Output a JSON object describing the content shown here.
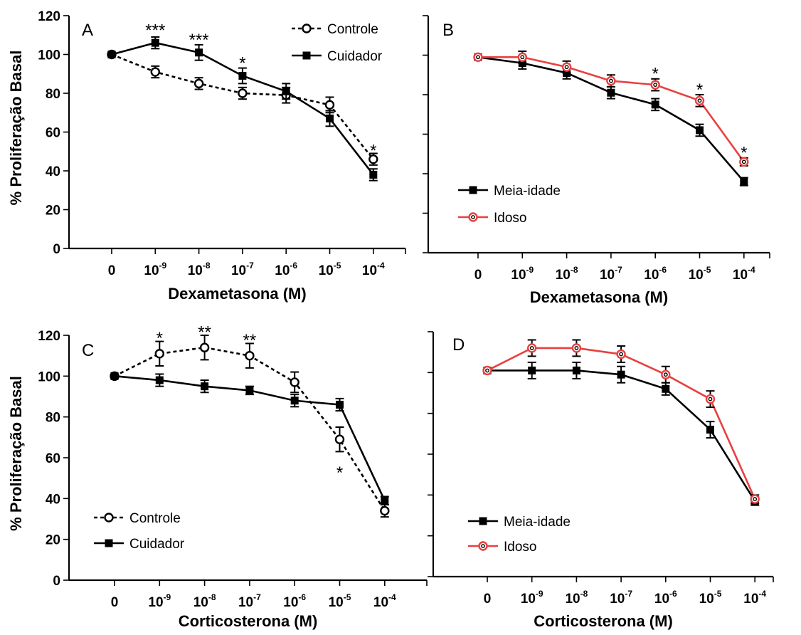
{
  "chart_data": [
    {
      "type": "line",
      "panel": "A",
      "xlabel": "Dexametasona (M)",
      "ylabel": "% Proliferação Basal",
      "ylim": [
        0,
        120
      ],
      "yticks": [
        0,
        20,
        40,
        60,
        80,
        100,
        120
      ],
      "categories": [
        {
          "base": "0",
          "exp": ""
        },
        {
          "base": "10",
          "exp": "-9"
        },
        {
          "base": "10",
          "exp": "-8"
        },
        {
          "base": "10",
          "exp": "-7"
        },
        {
          "base": "10",
          "exp": "-6"
        },
        {
          "base": "10",
          "exp": "-5"
        },
        {
          "base": "10",
          "exp": "-4"
        }
      ],
      "series": [
        {
          "name": "Controle",
          "values": [
            100,
            91,
            85,
            80,
            79,
            74,
            46
          ],
          "errors": [
            1,
            3,
            3,
            3,
            4,
            4,
            3
          ],
          "color": "#000000",
          "dash": true,
          "marker": "open-circle"
        },
        {
          "name": "Cuidador",
          "values": [
            100,
            106,
            101,
            89,
            81,
            67,
            38
          ],
          "errors": [
            1,
            3,
            4,
            4,
            4,
            4,
            3
          ],
          "color": "#000000",
          "dash": false,
          "marker": "filled-square"
        }
      ],
      "annotations": [
        {
          "x": 1,
          "y": 114,
          "text": "***"
        },
        {
          "x": 2,
          "y": 109,
          "text": "***"
        },
        {
          "x": 3,
          "y": 97,
          "text": "*"
        },
        {
          "x": 6,
          "y": 52,
          "text": "*"
        }
      ],
      "legend_position": "top-right"
    },
    {
      "type": "line",
      "panel": "B",
      "xlabel": "Dexametasona (M)",
      "ylabel": "",
      "ylim": [
        0,
        120
      ],
      "yticks": [
        0,
        20,
        40,
        60,
        80,
        100,
        120
      ],
      "categories": [
        {
          "base": "0",
          "exp": ""
        },
        {
          "base": "10",
          "exp": "-9"
        },
        {
          "base": "10",
          "exp": "-8"
        },
        {
          "base": "10",
          "exp": "-7"
        },
        {
          "base": "10",
          "exp": "-6"
        },
        {
          "base": "10",
          "exp": "-5"
        },
        {
          "base": "10",
          "exp": "-4"
        }
      ],
      "series": [
        {
          "name": "Meia-idade",
          "values": [
            99,
            96,
            91,
            81,
            75,
            62,
            36
          ],
          "errors": [
            1,
            3,
            3,
            3,
            3,
            3,
            2
          ],
          "color": "#000000",
          "dash": false,
          "marker": "filled-square"
        },
        {
          "name": "Idoso",
          "values": [
            99,
            99,
            94,
            87,
            85,
            77,
            46
          ],
          "errors": [
            1,
            3,
            3,
            3,
            3,
            3,
            2
          ],
          "color": "#e8403f",
          "dash": false,
          "marker": "open-circle"
        }
      ],
      "annotations": [
        {
          "x": 4,
          "y": 92,
          "text": "*"
        },
        {
          "x": 5,
          "y": 84,
          "text": "*"
        },
        {
          "x": 6,
          "y": 52,
          "text": "*"
        }
      ],
      "legend_position": "bottom-left"
    },
    {
      "type": "line",
      "panel": "C",
      "xlabel": "Corticosterona (M)",
      "ylabel": "% Proliferação Basal",
      "ylim": [
        0,
        120
      ],
      "yticks": [
        0,
        20,
        40,
        60,
        80,
        100,
        120
      ],
      "categories": [
        {
          "base": "0",
          "exp": ""
        },
        {
          "base": "10",
          "exp": "-9"
        },
        {
          "base": "10",
          "exp": "-8"
        },
        {
          "base": "10",
          "exp": "-7"
        },
        {
          "base": "10",
          "exp": "-6"
        },
        {
          "base": "10",
          "exp": "-5"
        },
        {
          "base": "10",
          "exp": "-4"
        }
      ],
      "series": [
        {
          "name": "Controle",
          "values": [
            100,
            111,
            114,
            110,
            97,
            69,
            34
          ],
          "errors": [
            1,
            6,
            6,
            6,
            5,
            6,
            3
          ],
          "color": "#000000",
          "dash": true,
          "marker": "open-circle"
        },
        {
          "name": "Cuidador",
          "values": [
            100,
            98,
            95,
            93,
            88,
            86,
            39
          ],
          "errors": [
            1,
            3,
            3,
            2,
            3,
            3,
            2
          ],
          "color": "#000000",
          "dash": false,
          "marker": "filled-square"
        }
      ],
      "annotations": [
        {
          "x": 1,
          "y": 120,
          "text": "*"
        },
        {
          "x": 2,
          "y": 123,
          "text": "**"
        },
        {
          "x": 3,
          "y": 119,
          "text": "**"
        },
        {
          "x": 5,
          "y": 54,
          "text": "*"
        }
      ],
      "legend_position": "bottom-left"
    },
    {
      "type": "line",
      "panel": "D",
      "xlabel": "Corticosterona (M)",
      "ylabel": "",
      "ylim": [
        0,
        120
      ],
      "yticks": [
        0,
        20,
        40,
        60,
        80,
        100,
        120
      ],
      "categories": [
        {
          "base": "0",
          "exp": ""
        },
        {
          "base": "10",
          "exp": "-9"
        },
        {
          "base": "10",
          "exp": "-8"
        },
        {
          "base": "10",
          "exp": "-7"
        },
        {
          "base": "10",
          "exp": "-6"
        },
        {
          "base": "10",
          "exp": "-5"
        },
        {
          "base": "10",
          "exp": "-4"
        }
      ],
      "series": [
        {
          "name": "Meia-idade",
          "values": [
            101,
            101,
            101,
            99,
            92,
            72,
            37
          ],
          "errors": [
            1,
            4,
            4,
            4,
            3,
            4,
            2
          ],
          "color": "#000000",
          "dash": false,
          "marker": "filled-square"
        },
        {
          "name": "Idoso",
          "values": [
            101,
            112,
            112,
            109,
            99,
            87,
            38
          ],
          "errors": [
            1,
            4,
            4,
            4,
            4,
            4,
            2
          ],
          "color": "#e8403f",
          "dash": false,
          "marker": "open-circle"
        }
      ],
      "annotations": [],
      "legend_position": "bottom-left"
    }
  ]
}
